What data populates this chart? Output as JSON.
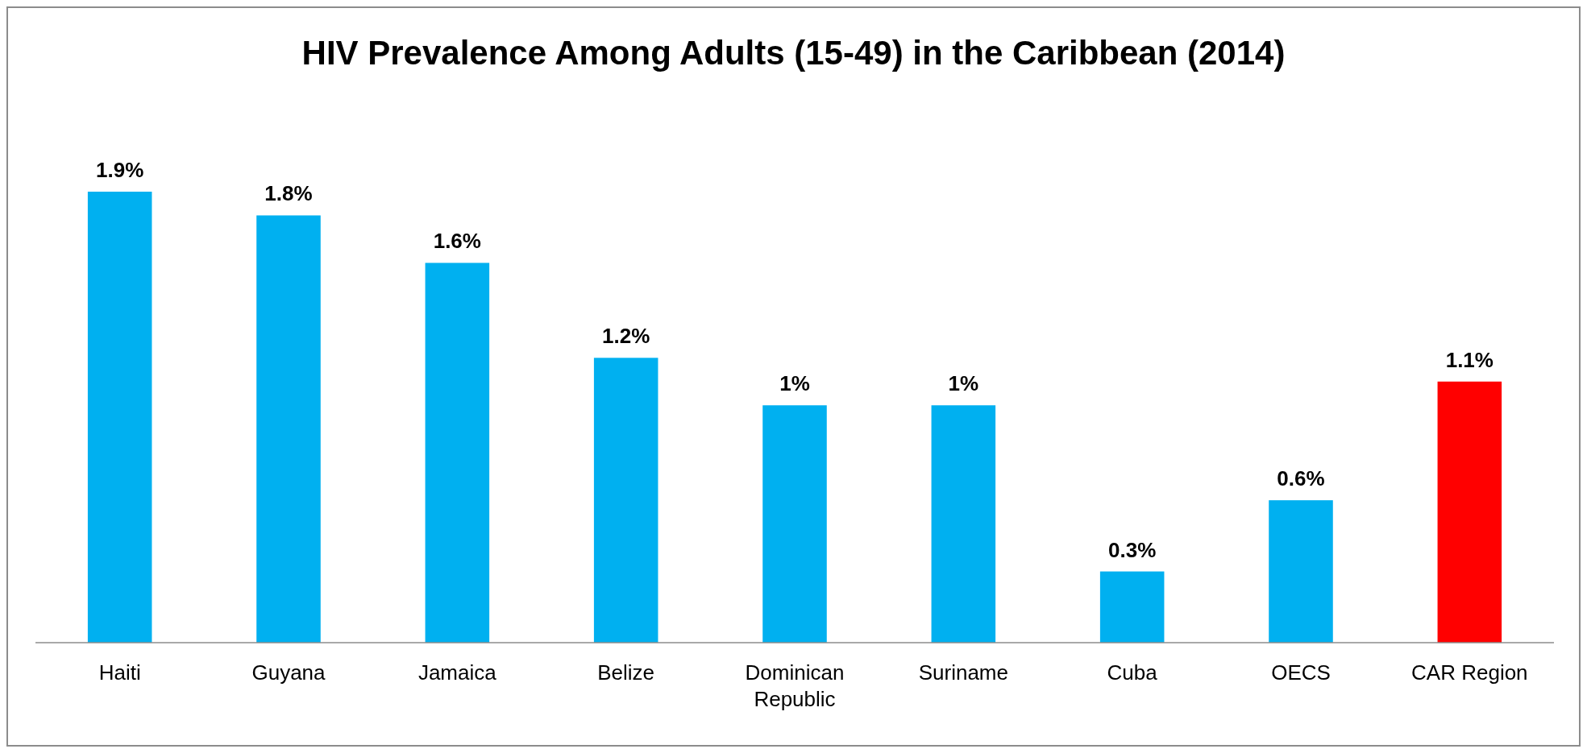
{
  "chart_data": {
    "type": "bar",
    "title": "HIV Prevalence Among Adults (15-49) in the Caribbean (2014)",
    "categories": [
      "Haiti",
      "Guyana",
      "Jamaica",
      "Belize",
      "Dominican Republic",
      "Suriname",
      "Cuba",
      "OECS",
      "CAR Region"
    ],
    "values": [
      1.9,
      1.8,
      1.6,
      1.2,
      1,
      1,
      0.3,
      0.6,
      1.1
    ],
    "colors": [
      "#00b0f0",
      "#00b0f0",
      "#00b0f0",
      "#00b0f0",
      "#00b0f0",
      "#00b0f0",
      "#00b0f0",
      "#00b0f0",
      "#ff0000"
    ],
    "value_labels": [
      "1.9%",
      "1.8%",
      "1.6%",
      "1.2%",
      "1%",
      "1%",
      "0.3%",
      "0.6%",
      "1.1%"
    ]
  }
}
